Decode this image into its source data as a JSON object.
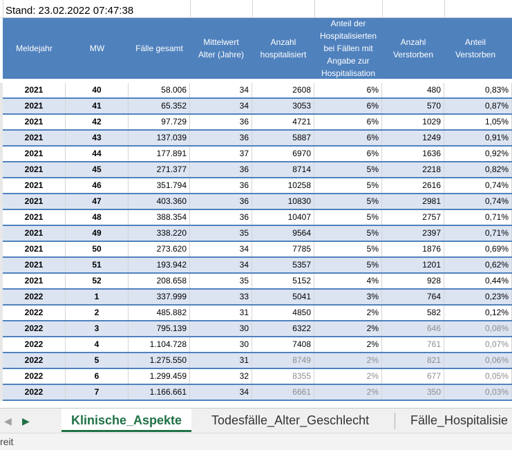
{
  "stand": "Stand: 23.02.2022 07:47:38",
  "headers": [
    "Meldejahr",
    "MW",
    "Fälle gesamt",
    "Mittelwert Alter (Jahre)",
    "Anzahl hospitalisiert",
    "Anteil der Hospitalisierten bei Fällen mit Angabe zur Hospitalisation",
    "Anzahl Verstorben",
    "Anteil Verstorben"
  ],
  "rows": [
    {
      "year": "2021",
      "mw": "40",
      "faelle": "58.006",
      "alter": "34",
      "hosp": "2608",
      "anteil_hosp": "6%",
      "verst": "480",
      "anteil_verst": "0,83%"
    },
    {
      "year": "2021",
      "mw": "41",
      "faelle": "65.352",
      "alter": "34",
      "hosp": "3053",
      "anteil_hosp": "6%",
      "verst": "570",
      "anteil_verst": "0,87%"
    },
    {
      "year": "2021",
      "mw": "42",
      "faelle": "97.729",
      "alter": "36",
      "hosp": "4721",
      "anteil_hosp": "6%",
      "verst": "1029",
      "anteil_verst": "1,05%"
    },
    {
      "year": "2021",
      "mw": "43",
      "faelle": "137.039",
      "alter": "36",
      "hosp": "5887",
      "anteil_hosp": "6%",
      "verst": "1249",
      "anteil_verst": "0,91%"
    },
    {
      "year": "2021",
      "mw": "44",
      "faelle": "177.891",
      "alter": "37",
      "hosp": "6970",
      "anteil_hosp": "6%",
      "verst": "1636",
      "anteil_verst": "0,92%"
    },
    {
      "year": "2021",
      "mw": "45",
      "faelle": "271.377",
      "alter": "36",
      "hosp": "8714",
      "anteil_hosp": "5%",
      "verst": "2218",
      "anteil_verst": "0,82%"
    },
    {
      "year": "2021",
      "mw": "46",
      "faelle": "351.794",
      "alter": "36",
      "hosp": "10258",
      "anteil_hosp": "5%",
      "verst": "2616",
      "anteil_verst": "0,74%"
    },
    {
      "year": "2021",
      "mw": "47",
      "faelle": "403.360",
      "alter": "36",
      "hosp": "10830",
      "anteil_hosp": "5%",
      "verst": "2981",
      "anteil_verst": "0,74%"
    },
    {
      "year": "2021",
      "mw": "48",
      "faelle": "388.354",
      "alter": "36",
      "hosp": "10407",
      "anteil_hosp": "5%",
      "verst": "2757",
      "anteil_verst": "0,71%"
    },
    {
      "year": "2021",
      "mw": "49",
      "faelle": "338.220",
      "alter": "35",
      "hosp": "9564",
      "anteil_hosp": "5%",
      "verst": "2397",
      "anteil_verst": "0,71%"
    },
    {
      "year": "2021",
      "mw": "50",
      "faelle": "273.620",
      "alter": "34",
      "hosp": "7785",
      "anteil_hosp": "5%",
      "verst": "1876",
      "anteil_verst": "0,69%"
    },
    {
      "year": "2021",
      "mw": "51",
      "faelle": "193.942",
      "alter": "34",
      "hosp": "5357",
      "anteil_hosp": "5%",
      "verst": "1201",
      "anteil_verst": "0,62%"
    },
    {
      "year": "2021",
      "mw": "52",
      "faelle": "208.658",
      "alter": "35",
      "hosp": "5152",
      "anteil_hosp": "4%",
      "verst": "928",
      "anteil_verst": "0,44%"
    },
    {
      "year": "2022",
      "mw": "1",
      "faelle": "337.999",
      "alter": "33",
      "hosp": "5041",
      "anteil_hosp": "3%",
      "verst": "764",
      "anteil_verst": "0,23%"
    },
    {
      "year": "2022",
      "mw": "2",
      "faelle": "485.882",
      "alter": "31",
      "hosp": "4850",
      "anteil_hosp": "2%",
      "verst": "582",
      "anteil_verst": "0,12%"
    },
    {
      "year": "2022",
      "mw": "3",
      "faelle": "795.139",
      "alter": "30",
      "hosp": "6322",
      "anteil_hosp": "2%",
      "verst": "646",
      "anteil_verst": "0,08%"
    },
    {
      "year": "2022",
      "mw": "4",
      "faelle": "1.104.728",
      "alter": "30",
      "hosp": "7408",
      "anteil_hosp": "2%",
      "verst": "761",
      "anteil_verst": "0,07%"
    },
    {
      "year": "2022",
      "mw": "5",
      "faelle": "1.275.550",
      "alter": "31",
      "hosp": "8749",
      "anteil_hosp": "2%",
      "verst": "821",
      "anteil_verst": "0,06%"
    },
    {
      "year": "2022",
      "mw": "6",
      "faelle": "1.299.459",
      "alter": "32",
      "hosp": "8355",
      "anteil_hosp": "2%",
      "verst": "677",
      "anteil_verst": "0,05%"
    },
    {
      "year": "2022",
      "mw": "7",
      "faelle": "1.166.661",
      "alter": "34",
      "hosp": "6661",
      "anteil_hosp": "2%",
      "verst": "350",
      "anteil_verst": "0,03%"
    }
  ],
  "grey_cells": {
    "hosp": [
      17,
      18,
      19
    ],
    "anteil_hosp": [
      17,
      18,
      19
    ],
    "verst": [
      15,
      16,
      17,
      18,
      19
    ],
    "anteil_verst": [
      15,
      16,
      17,
      18,
      19
    ]
  },
  "tabs": [
    {
      "label": "Klinische_Aspekte",
      "active": true
    },
    {
      "label": "Todesfälle_Alter_Geschlecht",
      "active": false
    },
    {
      "label": "Fälle_Hospitalisie",
      "active": false
    }
  ],
  "status": "reit",
  "colors": {
    "header": "#4f81bd",
    "band": "#dce4f2",
    "tab_active": "#1f7145"
  }
}
